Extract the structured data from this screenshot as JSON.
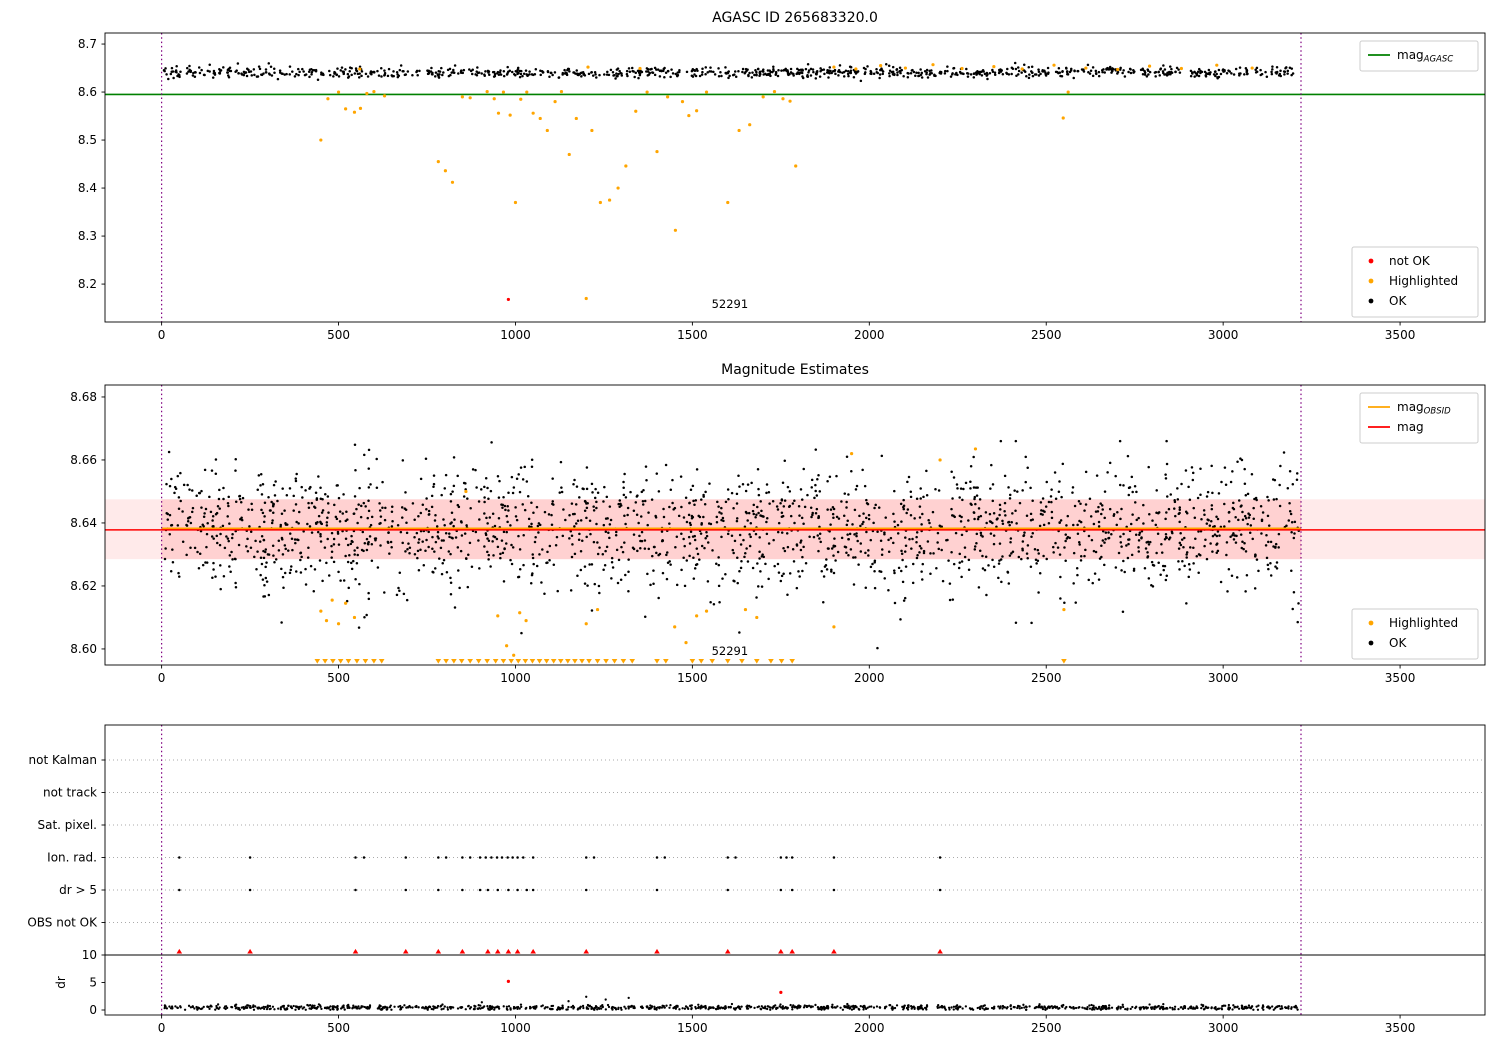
{
  "figure_title": "AGASC ID 265683320.0",
  "colors": {
    "ok": "#000000",
    "highlighted": "#ffa500",
    "not_ok": "#ff0000",
    "mag_agasc": "#008000",
    "mag_obsid": "#ffa500",
    "mag": "#ff0000",
    "band": "#ffb3b3",
    "vline": "#800080",
    "grid": "#aaaaaa",
    "spine": "#000000"
  },
  "xlim": [
    -160,
    3740
  ],
  "xticks": [
    0,
    500,
    1000,
    1500,
    2000,
    2500,
    3000,
    3500
  ],
  "xticklabels": [
    "0",
    "500",
    "1000",
    "1500",
    "2000",
    "2500",
    "3000",
    "3500"
  ],
  "vlines": [
    0,
    3220
  ],
  "chart_data": [
    {
      "type": "scatter",
      "title": "AGASC ID 265683320.0",
      "ylim": [
        8.121,
        8.723
      ],
      "yticks": [
        8.2,
        8.3,
        8.4,
        8.5,
        8.6,
        8.7
      ],
      "yticklabels": [
        "8.2",
        "8.3",
        "8.4",
        "8.5",
        "8.6",
        "8.7"
      ],
      "mag_agasc": 8.595,
      "cloud": {
        "n": 1000,
        "x0": 5,
        "x1": 3215,
        "mean": 8.641,
        "std": 0.0055,
        "clip": [
          8.607,
          8.67
        ],
        "seed": 7
      },
      "highlighted": [
        [
          450,
          8.5
        ],
        [
          470,
          8.586
        ],
        [
          500,
          8.6
        ],
        [
          520,
          8.565
        ],
        [
          545,
          8.558
        ],
        [
          562,
          8.566
        ],
        [
          580,
          8.597
        ],
        [
          600,
          8.601
        ],
        [
          630,
          8.592
        ],
        [
          782,
          8.455
        ],
        [
          802,
          8.436
        ],
        [
          822,
          8.412
        ],
        [
          850,
          8.59
        ],
        [
          872,
          8.588
        ],
        [
          920,
          8.601
        ],
        [
          940,
          8.586
        ],
        [
          952,
          8.556
        ],
        [
          966,
          8.6
        ],
        [
          985,
          8.552
        ],
        [
          1000,
          8.37
        ],
        [
          1015,
          8.585
        ],
        [
          1032,
          8.6
        ],
        [
          1050,
          8.556
        ],
        [
          1070,
          8.545
        ],
        [
          1090,
          8.52
        ],
        [
          1112,
          8.58
        ],
        [
          1130,
          8.601
        ],
        [
          1152,
          8.47
        ],
        [
          1172,
          8.545
        ],
        [
          1200,
          8.17
        ],
        [
          1216,
          8.52
        ],
        [
          1240,
          8.37
        ],
        [
          1266,
          8.375
        ],
        [
          1290,
          8.4
        ],
        [
          1312,
          8.446
        ],
        [
          1340,
          8.56
        ],
        [
          1372,
          8.6
        ],
        [
          1400,
          8.476
        ],
        [
          1430,
          8.59
        ],
        [
          1452,
          8.312
        ],
        [
          1472,
          8.58
        ],
        [
          1490,
          8.551
        ],
        [
          1512,
          8.561
        ],
        [
          1540,
          8.6
        ],
        [
          1600,
          8.37
        ],
        [
          1632,
          8.52
        ],
        [
          1662,
          8.532
        ],
        [
          1700,
          8.59
        ],
        [
          1732,
          8.601
        ],
        [
          1756,
          8.586
        ],
        [
          1776,
          8.581
        ],
        [
          1792,
          8.446
        ],
        [
          2548,
          8.546
        ],
        [
          2562,
          8.6
        ],
        [
          560,
          8.648
        ],
        [
          1205,
          8.652
        ],
        [
          1352,
          8.649
        ],
        [
          1900,
          8.652
        ],
        [
          1962,
          8.648
        ],
        [
          2032,
          8.655
        ],
        [
          2102,
          8.65
        ],
        [
          2180,
          8.657
        ],
        [
          2262,
          8.649
        ],
        [
          2352,
          8.653
        ],
        [
          2432,
          8.648
        ],
        [
          2522,
          8.656
        ],
        [
          2612,
          8.65
        ],
        [
          2702,
          8.647
        ],
        [
          2792,
          8.654
        ],
        [
          2882,
          8.649
        ],
        [
          2982,
          8.656
        ],
        [
          3082,
          8.65
        ]
      ],
      "not_ok": [
        [
          980,
          8.168
        ]
      ],
      "annotation": {
        "text": "52291",
        "x": 1606,
        "y": 8.15
      },
      "legend_line": {
        "label": "mag",
        "sub": "AGASC"
      },
      "legend_markers": [
        {
          "key": "not_ok",
          "label": "not OK"
        },
        {
          "key": "highlighted",
          "label": "Highlighted"
        },
        {
          "key": "ok",
          "label": "OK"
        }
      ]
    },
    {
      "type": "scatter",
      "title": "Magnitude Estimates",
      "ylim": [
        8.5949,
        8.6838
      ],
      "yticks": [
        8.6,
        8.62,
        8.64,
        8.66,
        8.68
      ],
      "yticklabels": [
        "8.60",
        "8.62",
        "8.64",
        "8.66",
        "8.68"
      ],
      "band": {
        "y0": 8.6285,
        "y1": 8.6475,
        "x0": 0,
        "x1": 3220
      },
      "band_full": {
        "y0": 8.6285,
        "y1": 8.6475
      },
      "mag_obsid": {
        "y": 8.6382,
        "x0": 0,
        "x1": 3220
      },
      "mag": 8.6378,
      "cloud": {
        "n": 2000,
        "x0": 5,
        "x1": 3215,
        "mean": 8.638,
        "std": 0.01,
        "clip": [
          8.5955,
          8.666
        ],
        "seed": 11
      },
      "highlighted": [
        [
          450,
          8.612
        ],
        [
          466,
          8.609
        ],
        [
          482,
          8.6155
        ],
        [
          500,
          8.608
        ],
        [
          520,
          8.6145
        ],
        [
          545,
          8.61
        ],
        [
          860,
          8.65
        ],
        [
          950,
          8.6105
        ],
        [
          975,
          8.601
        ],
        [
          995,
          8.598
        ],
        [
          1012,
          8.6115
        ],
        [
          1030,
          8.609
        ],
        [
          1200,
          8.608
        ],
        [
          1232,
          8.6125
        ],
        [
          1450,
          8.607
        ],
        [
          1482,
          8.602
        ],
        [
          1512,
          8.6105
        ],
        [
          1540,
          8.612
        ],
        [
          1650,
          8.6125
        ],
        [
          1682,
          8.61
        ],
        [
          1900,
          8.607
        ],
        [
          1950,
          8.662
        ],
        [
          2200,
          8.66
        ],
        [
          2300,
          8.6635
        ],
        [
          2550,
          8.6125
        ]
      ],
      "clipped_low_x": [
        440,
        462,
        484,
        506,
        528,
        552,
        576,
        600,
        622,
        782,
        804,
        826,
        848,
        872,
        896,
        920,
        944,
        966,
        988,
        1008,
        1028,
        1048,
        1068,
        1088,
        1108,
        1128,
        1148,
        1168,
        1188,
        1208,
        1232,
        1256,
        1280,
        1305,
        1330,
        1400,
        1425,
        1500,
        1525,
        1556,
        1600,
        1640,
        1682,
        1722,
        1752,
        1782,
        2550
      ],
      "annotation": {
        "text": "52291",
        "x": 1606,
        "y": 8.598
      },
      "legend_lines": [
        {
          "key": "mag_obsid",
          "label": "mag",
          "sub": "OBSID"
        },
        {
          "key": "mag",
          "label": "mag",
          "sub": ""
        }
      ],
      "legend_markers": [
        {
          "key": "highlighted",
          "label": "Highlighted"
        },
        {
          "key": "ok",
          "label": "OK"
        }
      ]
    },
    {
      "type": "scatter",
      "title": "",
      "categories": [
        "not Kalman",
        "not track",
        "Sat. pixel.",
        "Ion. rad.",
        "dr > 5",
        "OBS not OK"
      ],
      "dr_label": "dr",
      "dr_ticks": [
        10,
        5,
        0
      ],
      "dr_ticklabels": [
        "10",
        "5",
        "0"
      ],
      "event_rows": [
        {
          "category": "Ion. rad.",
          "x": [
            50,
            250,
            548,
            572,
            690,
            782,
            804,
            850,
            872,
            900,
            916,
            932,
            948,
            962,
            978,
            992,
            1006,
            1022,
            1050,
            1200,
            1222,
            1400,
            1422,
            1600,
            1622,
            1750,
            1766,
            1782,
            1900,
            2200
          ]
        },
        {
          "category": "dr > 5",
          "x": [
            50,
            250,
            548,
            690,
            782,
            850,
            900,
            922,
            950,
            980,
            1006,
            1032,
            1050,
            1200,
            1400,
            1600,
            1750,
            1782,
            1900,
            2200
          ]
        }
      ],
      "dr_clipped_x": [
        50,
        250,
        548,
        690,
        782,
        850,
        922,
        950,
        980,
        1006,
        1050,
        1200,
        1400,
        1600,
        1750,
        1782,
        1900,
        2200
      ],
      "dr_red": [
        [
          980,
          5.2
        ],
        [
          1750,
          3.2
        ]
      ],
      "dr_cloud": {
        "n": 1100,
        "x0": 5,
        "x1": 3215,
        "mean": 0.45,
        "std": 0.22,
        "clip": [
          0.05,
          1.3
        ],
        "seed": 13
      },
      "dr_spikes": [
        [
          1200,
          2.4
        ],
        [
          1255,
          1.9
        ],
        [
          1320,
          2.2
        ],
        [
          905,
          1.4
        ],
        [
          1150,
          1.6
        ]
      ]
    }
  ]
}
